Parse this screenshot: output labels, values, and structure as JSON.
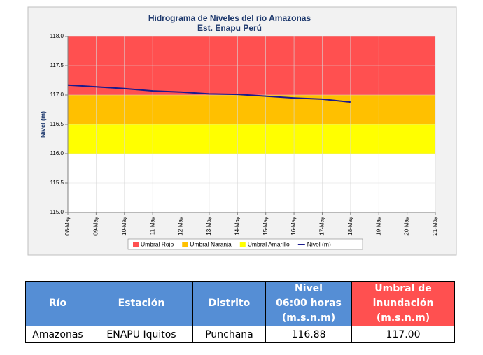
{
  "chart_data": {
    "type": "line",
    "title": "Hidrograma de Niveles del río Amazonas",
    "subtitle": "Est. Enapu Perú",
    "ylabel": "Nivel (m)",
    "categories": [
      "08-May",
      "09-May",
      "10-May",
      "11-May",
      "12-May",
      "13-May",
      "14-May",
      "15-May",
      "16-May",
      "17-May",
      "18-May",
      "19-May",
      "20-May",
      "21-May"
    ],
    "bands": [
      {
        "name": "Umbral Rojo",
        "color": "#ff5050",
        "from": 117,
        "to": 118
      },
      {
        "name": "Umbral Naranja",
        "color": "#ffc000",
        "from": 116.5,
        "to": 117
      },
      {
        "name": "Umbral Amarillo",
        "color": "#ffff00",
        "from": 116,
        "to": 116.5
      }
    ],
    "series": [
      {
        "name": "Nivel (m)",
        "color": "#1a1a8c",
        "values": [
          117.17,
          117.14,
          117.11,
          117.07,
          117.05,
          117.02,
          117.01,
          116.98,
          116.95,
          116.93,
          116.88,
          null,
          null,
          null
        ]
      }
    ],
    "ylim": [
      115,
      118
    ],
    "yticks": [
      {
        "value": 115,
        "label": "115.0"
      },
      {
        "value": 115.5,
        "label": "115.5"
      },
      {
        "value": 116,
        "label": "116.0"
      },
      {
        "value": 116.5,
        "label": "116.5"
      },
      {
        "value": 117,
        "label": "117.0"
      },
      {
        "value": 117.5,
        "label": "117.5"
      },
      {
        "value": 118,
        "label": "118.0"
      }
    ],
    "grid": true
  },
  "table": {
    "columns": [
      "Río",
      "Estación",
      "Distrito",
      "Nivel\n06:00 horas\n(m.s.n.m)",
      "Umbral de\ninundación\n(m.s.n.m)"
    ],
    "rows": [
      [
        "Amazonas",
        "ENAPU Iquitos",
        "Punchana",
        "116.88",
        "117.00"
      ]
    ]
  }
}
